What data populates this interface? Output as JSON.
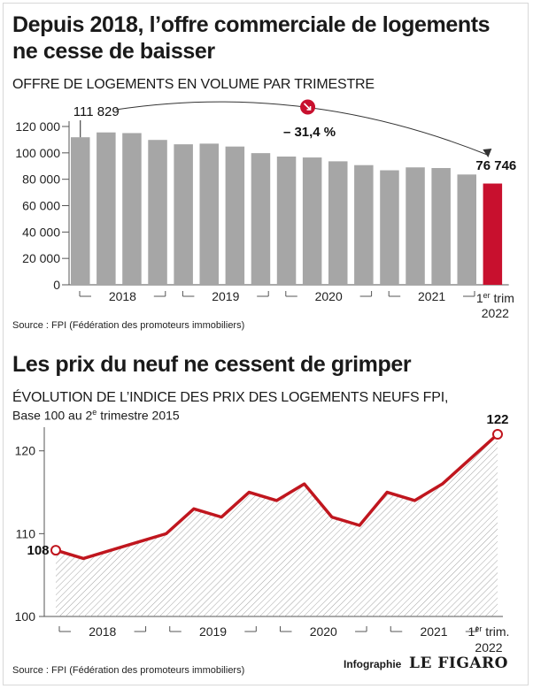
{
  "header": {
    "title_line1": "Depuis 2018, l’offre commerciale de logements",
    "title_line2": "ne cesse de baisser",
    "subtitle": "OFFRE DE LOGEMENTS EN VOLUME PAR TRIMESTRE"
  },
  "section2": {
    "title": "Les prix du neuf ne cessent de grimper",
    "subtitle": "ÉVOLUTION DE L’INDICE DES PRIX DES LOGEMENTS NEUFS FPI,",
    "base_prefix": "Base 100 au 2",
    "base_sup": "e",
    "base_suffix": " trimestre 2015"
  },
  "sources": {
    "source1": "Source : FPI (Fédération des promoteurs immobiliers)",
    "source2": "Source : FPI (Fédération des promoteurs immobiliers)"
  },
  "footer": {
    "credit": "Infographie",
    "logo": "LE FIGARO"
  },
  "colors": {
    "bar": "#a6a6a6",
    "highlight": "#c8102e",
    "line": "#c0161e",
    "axis": "#555555"
  },
  "chart_data": [
    {
      "type": "bar",
      "ylim": [
        0,
        120000
      ],
      "yticks": [
        0,
        20000,
        40000,
        60000,
        80000,
        100000,
        120000
      ],
      "ytick_labels": [
        "0",
        "20 000",
        "40 000",
        "60 000",
        "80 000",
        "100 000",
        "120 000"
      ],
      "values": [
        111829,
        115500,
        115000,
        109800,
        106500,
        107000,
        104800,
        99800,
        97200,
        96500,
        93600,
        90700,
        86800,
        89000,
        88500,
        83600,
        76746
      ],
      "highlight_index": 16,
      "year_labels": [
        "2018",
        "2019",
        "2020",
        "2021"
      ],
      "last_label": {
        "prefix": "1",
        "sup": "er",
        "suffix": " trim",
        "line2": "2022"
      },
      "annotations": {
        "first": "111 829",
        "last": "76 746",
        "change": "– 31,4 %"
      }
    },
    {
      "type": "line",
      "ylim": [
        100,
        122
      ],
      "yticks": [
        100,
        110,
        120
      ],
      "ytick_labels": [
        "100",
        "110",
        "120"
      ],
      "values": [
        108,
        107,
        108,
        109,
        110,
        113,
        112,
        115,
        114,
        116,
        112,
        111,
        115,
        114,
        116,
        119,
        122
      ],
      "year_labels": [
        "2018",
        "2019",
        "2020",
        "2021"
      ],
      "last_label": {
        "prefix": "1",
        "sup": "er",
        "suffix": " trim.",
        "line2": "2022"
      },
      "annotations": {
        "first": "108",
        "last": "122"
      }
    }
  ]
}
